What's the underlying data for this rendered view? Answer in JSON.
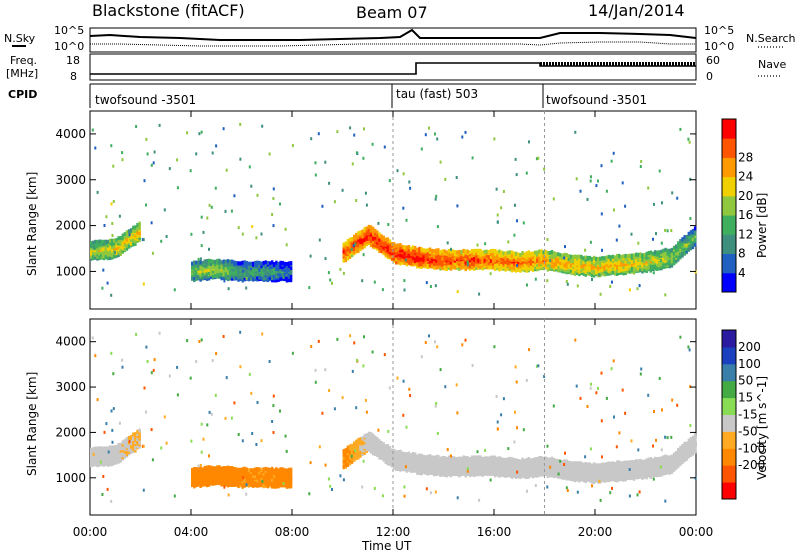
{
  "header": {
    "station": "Blackstone (fitACF)",
    "beam": "Beam 07",
    "date": "14/Jan/2014"
  },
  "noise_panel": {
    "left_label": "N.Sky",
    "right_label": "N.Search",
    "left_ticks": [
      "10^5",
      "10^0"
    ],
    "right_ticks": [
      "10^5",
      "10^0"
    ]
  },
  "freq_panel": {
    "left_label_1": "Freq.",
    "left_label_2": "[MHz]",
    "right_label": "Nave",
    "left_ticks": [
      "18",
      "8"
    ],
    "right_ticks": [
      "60",
      "0"
    ]
  },
  "cpid_panel": {
    "label": "CPID",
    "programs": [
      {
        "name": "twofsound -3501",
        "start_h": 0,
        "end_h": 12
      },
      {
        "name": "tau (fast) 503",
        "start_h": 12,
        "end_h": 18
      },
      {
        "name": "twofsound -3501",
        "start_h": 18,
        "end_h": 24
      }
    ]
  },
  "time_axis": {
    "ticks": [
      "00:00",
      "04:00",
      "08:00",
      "12:00",
      "16:00",
      "20:00",
      "00:00"
    ],
    "title": "Time UT"
  },
  "range_ticks": [
    "1000",
    "2000",
    "3000",
    "4000"
  ],
  "ylabel": "Slant Range [km]",
  "colors": {
    "power": [
      "#0000ff",
      "#2060c0",
      "#3f8f7f",
      "#3faf5f",
      "#8fc83f",
      "#f0d000",
      "#ff9900",
      "#ff5500",
      "#ff0000"
    ],
    "velocity": [
      "#ff0000",
      "#ff5500",
      "#ff8800",
      "#ffaa22",
      "#c8c8c8",
      "#88dd55",
      "#44aa44",
      "#3a7faa",
      "#1a3fbf",
      "#2a1aa0"
    ]
  },
  "chart_data": [
    {
      "type": "heatmap",
      "name": "power",
      "colorbar_label": "Power [dB]",
      "colorbar_ticks": [
        "4",
        "8",
        "12",
        "16",
        "20",
        "24",
        "28"
      ],
      "x": [
        0,
        1,
        2,
        3,
        4,
        5,
        6,
        7,
        8,
        9,
        10,
        11,
        12,
        13,
        14,
        15,
        16,
        17,
        18,
        19,
        20,
        21,
        22,
        23,
        24
      ],
      "echo_center_km": [
        1450,
        1500,
        1900,
        null,
        1000,
        1050,
        1000,
        1000,
        1000,
        null,
        1400,
        1800,
        1400,
        1300,
        1250,
        1250,
        1250,
        1200,
        1250,
        1150,
        1100,
        1150,
        1200,
        1300,
        1800
      ],
      "echo_power_db": [
        18,
        20,
        22,
        null,
        16,
        18,
        12,
        12,
        8,
        null,
        28,
        30,
        30,
        30,
        28,
        28,
        26,
        26,
        24,
        22,
        22,
        22,
        20,
        18,
        14
      ],
      "ylim": [
        180,
        4500
      ],
      "xlim": [
        0,
        24
      ],
      "xlabel": "Time UT",
      "ylabel": "Slant Range [km]"
    },
    {
      "type": "heatmap",
      "name": "velocity",
      "colorbar_label": "Velocity [m s^-1]",
      "colorbar_ticks": [
        "200",
        "100",
        "50",
        "15",
        "-15",
        "-50",
        "-100",
        "-200"
      ],
      "x": [
        0,
        1,
        2,
        3,
        4,
        5,
        6,
        7,
        8,
        9,
        10,
        11,
        12,
        13,
        14,
        15,
        16,
        17,
        18,
        19,
        20,
        21,
        22,
        23,
        24
      ],
      "echo_center_km": [
        1450,
        1500,
        1900,
        null,
        1000,
        1050,
        1000,
        1000,
        1000,
        null,
        1400,
        1800,
        1400,
        1300,
        1250,
        1250,
        1250,
        1200,
        1250,
        1150,
        1100,
        1150,
        1200,
        1300,
        1800
      ],
      "echo_velocity_ms": [
        0,
        0,
        -20,
        null,
        -80,
        -80,
        -60,
        -60,
        -70,
        null,
        -60,
        0,
        0,
        0,
        0,
        0,
        0,
        0,
        0,
        0,
        0,
        0,
        0,
        0,
        0
      ],
      "ylim": [
        180,
        4500
      ],
      "xlim": [
        0,
        24
      ],
      "xlabel": "Time UT",
      "ylabel": "Slant Range [km]"
    }
  ]
}
